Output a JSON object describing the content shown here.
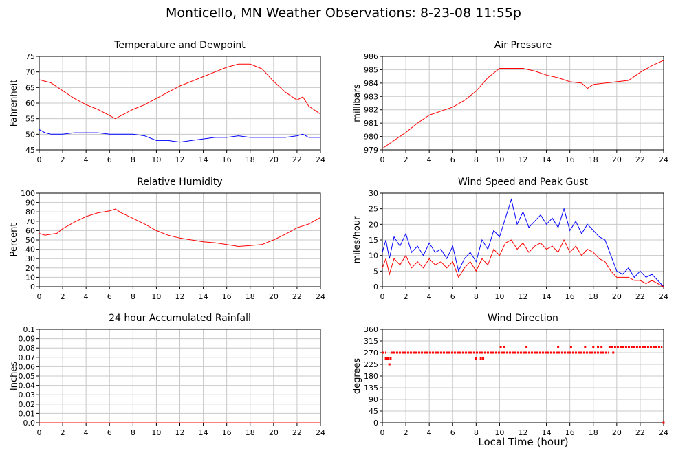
{
  "page": {
    "title": "Monticello, MN Weather Observations: 8-23-08 11:55p",
    "xaxis_label": "Local Time (hour)"
  },
  "colors": {
    "red": "#ff0000",
    "blue": "#0000ff",
    "grid": "#c8c8c8"
  },
  "chart_data": [
    {
      "id": "temp",
      "type": "line",
      "title": "Temperature and Dewpoint",
      "ylabel": "Fahrenheit",
      "xlim": [
        0,
        24
      ],
      "ylim": [
        45,
        75
      ],
      "yticks": [
        45,
        50,
        55,
        60,
        65,
        70,
        75
      ],
      "xticks": [
        0,
        2,
        4,
        6,
        8,
        10,
        12,
        14,
        16,
        18,
        20,
        22,
        24
      ],
      "grid": true,
      "series": [
        {
          "color": "#ff0000",
          "x": [
            0,
            1,
            2,
            3,
            4,
            5,
            6,
            6.5,
            7,
            8,
            9,
            10,
            11,
            12,
            13,
            14,
            15,
            16,
            17,
            18,
            19,
            20,
            21,
            22,
            22.5,
            23,
            24
          ],
          "values": [
            67.5,
            66.5,
            64,
            61.5,
            59.5,
            58,
            56,
            55,
            56,
            58,
            59.5,
            61.5,
            63.5,
            65.5,
            67,
            68.5,
            70,
            71.5,
            72.5,
            72.5,
            71,
            67,
            63.5,
            61,
            62,
            59,
            56.5
          ]
        },
        {
          "color": "#0000ff",
          "x": [
            0,
            0.5,
            1,
            2,
            3,
            4,
            5,
            6,
            7,
            8,
            9,
            10,
            11,
            12,
            13,
            14,
            15,
            16,
            17,
            18,
            19,
            20,
            21,
            22,
            22.5,
            23,
            24
          ],
          "values": [
            51.5,
            50.5,
            50,
            50,
            50.5,
            50.5,
            50.5,
            50,
            50,
            50,
            49.5,
            48,
            48,
            47.5,
            48,
            48.5,
            49,
            49,
            49.5,
            49,
            49,
            49,
            49,
            49.5,
            50,
            49,
            49
          ]
        }
      ]
    },
    {
      "id": "pressure",
      "type": "line",
      "title": "Air Pressure",
      "ylabel": "millibars",
      "xlim": [
        0,
        24
      ],
      "ylim": [
        979,
        986
      ],
      "yticks": [
        979,
        980,
        981,
        982,
        983,
        984,
        985,
        986
      ],
      "xticks": [
        0,
        2,
        4,
        6,
        8,
        10,
        12,
        14,
        16,
        18,
        20,
        22,
        24
      ],
      "grid": true,
      "series": [
        {
          "color": "#ff0000",
          "x": [
            0,
            1,
            2,
            3,
            4,
            5,
            6,
            7,
            8,
            9,
            10,
            11,
            12,
            13,
            14,
            15,
            16,
            17,
            17.5,
            18,
            19,
            20,
            21,
            22,
            23,
            24
          ],
          "values": [
            979.1,
            979.7,
            980.3,
            981,
            981.6,
            981.9,
            982.2,
            982.7,
            983.4,
            984.4,
            985.1,
            985.1,
            985.1,
            984.9,
            984.6,
            984.4,
            984.1,
            984.0,
            983.6,
            983.9,
            984.0,
            984.1,
            984.2,
            984.8,
            985.3,
            985.7
          ]
        }
      ]
    },
    {
      "id": "humidity",
      "type": "line",
      "title": "Relative Humidity",
      "ylabel": "Percent",
      "xlim": [
        0,
        24
      ],
      "ylim": [
        0,
        100
      ],
      "yticks": [
        0,
        10,
        20,
        30,
        40,
        50,
        60,
        70,
        80,
        90,
        100
      ],
      "xticks": [
        0,
        2,
        4,
        6,
        8,
        10,
        12,
        14,
        16,
        18,
        20,
        22,
        24
      ],
      "grid": true,
      "series": [
        {
          "color": "#ff0000",
          "x": [
            0,
            0.5,
            1,
            1.5,
            2,
            3,
            4,
            5,
            6,
            6.5,
            7,
            8,
            9,
            10,
            11,
            12,
            13,
            14,
            15,
            16,
            17,
            18,
            19,
            20,
            21,
            22,
            23,
            24
          ],
          "values": [
            57,
            55,
            56,
            57,
            62,
            69,
            75,
            79,
            81,
            83,
            79,
            73,
            67,
            60,
            55,
            52,
            50,
            48,
            47,
            45,
            43,
            44,
            45,
            50,
            56,
            63,
            67,
            74
          ]
        }
      ]
    },
    {
      "id": "wind",
      "type": "line",
      "title": "Wind Speed and Peak Gust",
      "ylabel": "miles/hour",
      "xlim": [
        0,
        24
      ],
      "ylim": [
        0,
        30
      ],
      "yticks": [
        0,
        5,
        10,
        15,
        20,
        25,
        30
      ],
      "xticks": [
        0,
        2,
        4,
        6,
        8,
        10,
        12,
        14,
        16,
        18,
        20,
        22,
        24
      ],
      "grid": true,
      "series": [
        {
          "color": "#0000ff",
          "x": [
            0,
            0.3,
            0.6,
            1,
            1.5,
            2,
            2.5,
            3,
            3.5,
            4,
            4.5,
            5,
            5.5,
            6,
            6.5,
            7,
            7.5,
            8,
            8.5,
            9,
            9.5,
            10,
            10.5,
            11,
            11.5,
            12,
            12.5,
            13,
            13.5,
            14,
            14.5,
            15,
            15.5,
            16,
            16.5,
            17,
            17.5,
            18,
            18.5,
            19,
            19.5,
            20,
            20.5,
            21,
            21.5,
            22,
            22.5,
            23,
            23.5,
            24
          ],
          "values": [
            11,
            15,
            9,
            16,
            13,
            17,
            11,
            13,
            10,
            14,
            11,
            12,
            9,
            13,
            5,
            9,
            11,
            8,
            15,
            12,
            18,
            16,
            22,
            28,
            20,
            24,
            19,
            21,
            23,
            20,
            22,
            19,
            25,
            18,
            21,
            17,
            20,
            18,
            16,
            15,
            10,
            5,
            4,
            6,
            3,
            5,
            3,
            4,
            2,
            0
          ]
        },
        {
          "color": "#ff0000",
          "x": [
            0,
            0.3,
            0.6,
            1,
            1.5,
            2,
            2.5,
            3,
            3.5,
            4,
            4.5,
            5,
            5.5,
            6,
            6.5,
            7,
            7.5,
            8,
            8.5,
            9,
            9.5,
            10,
            10.5,
            11,
            11.5,
            12,
            12.5,
            13,
            13.5,
            14,
            14.5,
            15,
            15.5,
            16,
            16.5,
            17,
            17.5,
            18,
            18.5,
            19,
            19.5,
            20,
            20.5,
            21,
            21.5,
            22,
            22.5,
            23,
            23.5,
            24
          ],
          "values": [
            6,
            9,
            4,
            9,
            7,
            10,
            6,
            8,
            6,
            9,
            7,
            8,
            6,
            8,
            3,
            6,
            8,
            5,
            9,
            7,
            12,
            10,
            14,
            15,
            12,
            14,
            11,
            13,
            14,
            12,
            13,
            11,
            15,
            11,
            13,
            10,
            12,
            11,
            9,
            8,
            5,
            3,
            3,
            3,
            2,
            2,
            1,
            2,
            1,
            0
          ]
        }
      ]
    },
    {
      "id": "rain",
      "type": "line",
      "title": "24 hour Accumulated Rainfall",
      "ylabel": "Inches",
      "xlim": [
        0,
        24
      ],
      "ylim": [
        0,
        0.1
      ],
      "yticks": [
        0.0,
        0.01,
        0.02,
        0.03,
        0.04,
        0.05,
        0.06,
        0.07,
        0.08,
        0.09,
        0.1
      ],
      "yticklabels": [
        "0.0",
        "0.01",
        "0.02",
        "0.03",
        "0.04",
        "0.05",
        "0.06",
        "0.07",
        "0.08",
        "0.09",
        "0.1"
      ],
      "xticks": [
        0,
        2,
        4,
        6,
        8,
        10,
        12,
        14,
        16,
        18,
        20,
        22,
        24
      ],
      "grid": true,
      "series": [
        {
          "color": "#ff0000",
          "x": [
            0,
            24
          ],
          "values": [
            0,
            0
          ]
        }
      ]
    },
    {
      "id": "direction",
      "type": "scatter",
      "title": "Wind Direction",
      "ylabel": "degrees",
      "xlim": [
        0,
        24
      ],
      "ylim": [
        0,
        360
      ],
      "yticks": [
        0,
        45,
        90,
        135,
        180,
        225,
        270,
        315,
        360
      ],
      "xticks": [
        0,
        2,
        4,
        6,
        8,
        10,
        12,
        14,
        16,
        18,
        20,
        22,
        24
      ],
      "grid": true,
      "series": [
        {
          "color": "#ff0000",
          "segments": [
            [
              0,
              0.3,
              270
            ],
            [
              0.7,
              19.3,
              270
            ],
            [
              19.3,
              23.9,
              292.5
            ]
          ],
          "x": [
            0.3,
            0.4,
            0.5,
            0.6,
            0.7,
            8.0,
            8.4,
            8.6,
            10.1,
            10.4,
            12.3,
            15.0,
            16.1,
            17.3,
            18.0,
            18.4,
            18.7,
            19.7,
            24.0
          ],
          "values": [
            247.5,
            247.5,
            247.5,
            225,
            247.5,
            247.5,
            247.5,
            247.5,
            292.5,
            292.5,
            292.5,
            292.5,
            292.5,
            292.5,
            292.5,
            292.5,
            292.5,
            270,
            0
          ]
        }
      ]
    }
  ]
}
